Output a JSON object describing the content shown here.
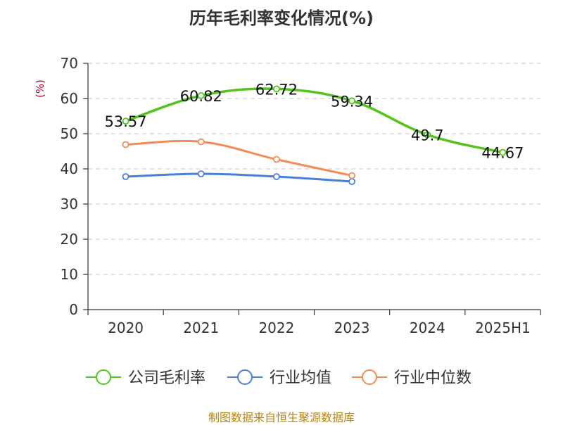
{
  "chart_data": {
    "type": "line",
    "title": "历年毛利率变化情况(%)",
    "ylabel": "(%)",
    "xlabel": "",
    "categories": [
      "2020",
      "2021",
      "2022",
      "2023",
      "2024",
      "2025H1"
    ],
    "ylim": [
      0,
      70
    ],
    "yticks": [
      0,
      10,
      20,
      30,
      40,
      50,
      60,
      70
    ],
    "grid": true,
    "legend_position": "bottom",
    "series": [
      {
        "name": "公司毛利率",
        "color": "#52c41a",
        "values": [
          53.57,
          60.82,
          62.72,
          59.34,
          49.7,
          44.67
        ],
        "labels": [
          "53.57",
          "60.82",
          "62.72",
          "59.34",
          "49.7",
          "44.67"
        ]
      },
      {
        "name": "行业均值",
        "color": "#4a7fd8",
        "values": [
          37.8,
          38.6,
          37.8,
          36.4,
          null,
          null
        ]
      },
      {
        "name": "行业中位数",
        "color": "#f28b55",
        "values": [
          46.9,
          47.7,
          42.7,
          38.1,
          null,
          null
        ]
      }
    ]
  },
  "source": "制图数据来自恒生聚源数据库"
}
